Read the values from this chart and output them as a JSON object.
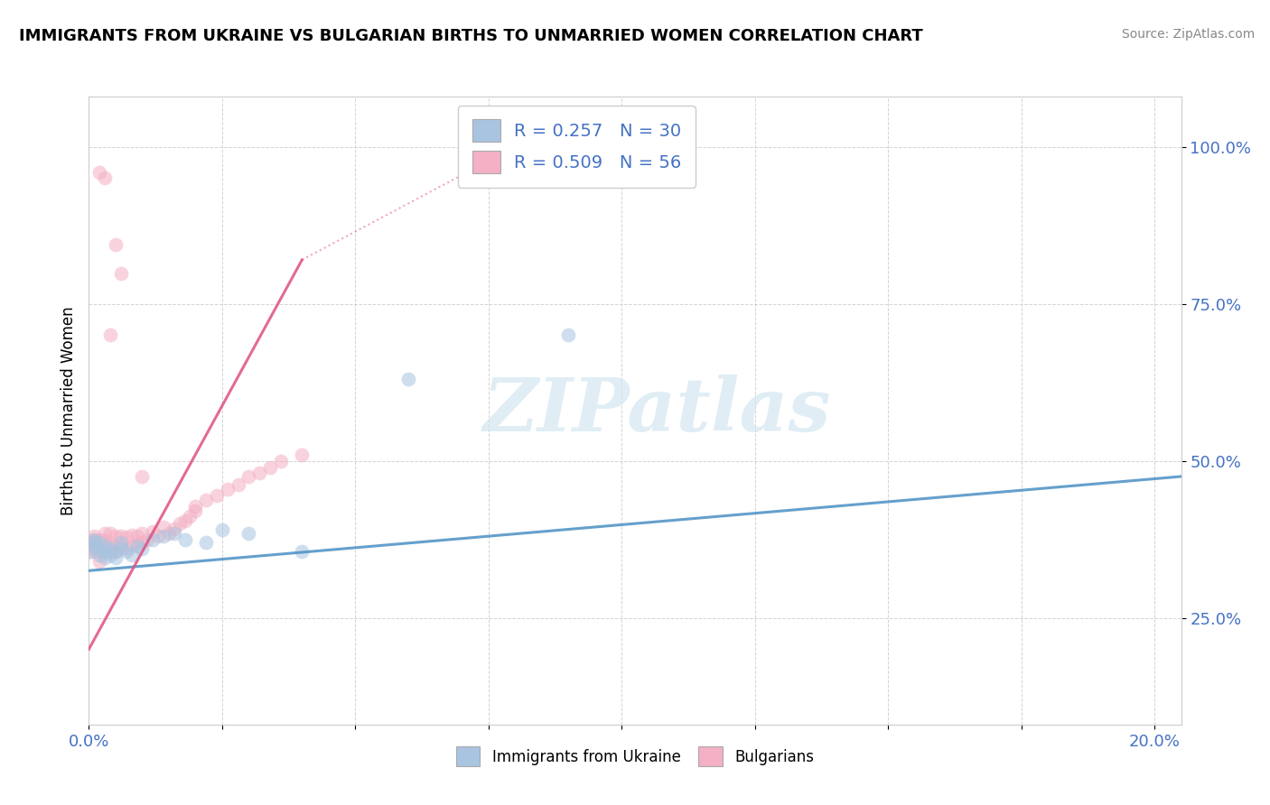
{
  "title": "IMMIGRANTS FROM UKRAINE VS BULGARIAN BIRTHS TO UNMARRIED WOMEN CORRELATION CHART",
  "source": "Source: ZipAtlas.com",
  "ylabel": "Births to Unmarried Women",
  "legend_r1": "R = 0.257",
  "legend_n1": "N = 30",
  "legend_r2": "R = 0.509",
  "legend_n2": "N = 56",
  "ukraine_fill": "#a8c4e0",
  "bulgarian_fill": "#f4b0c4",
  "ukraine_line": "#4a90c4",
  "bulgarian_line": "#e05080",
  "watermark_color": "#d0e4f0",
  "background_color": "#ffffff",
  "ukraine_x": [
    0.0005,
    0.001,
    0.001,
    0.001,
    0.002,
    0.002,
    0.002,
    0.003,
    0.003,
    0.003,
    0.004,
    0.004,
    0.005,
    0.005,
    0.006,
    0.006,
    0.007,
    0.008,
    0.009,
    0.01,
    0.012,
    0.014,
    0.016,
    0.018,
    0.022,
    0.025,
    0.03,
    0.04,
    0.06,
    0.09
  ],
  "ukraine_y": [
    0.355,
    0.365,
    0.37,
    0.375,
    0.35,
    0.36,
    0.37,
    0.345,
    0.355,
    0.365,
    0.35,
    0.36,
    0.345,
    0.355,
    0.36,
    0.37,
    0.355,
    0.35,
    0.365,
    0.36,
    0.375,
    0.38,
    0.385,
    0.375,
    0.37,
    0.39,
    0.385,
    0.355,
    0.63,
    0.7
  ],
  "bulgarian_x": [
    0.0003,
    0.0005,
    0.001,
    0.001,
    0.001,
    0.001,
    0.002,
    0.002,
    0.002,
    0.002,
    0.003,
    0.003,
    0.003,
    0.003,
    0.004,
    0.004,
    0.004,
    0.005,
    0.005,
    0.005,
    0.006,
    0.006,
    0.007,
    0.007,
    0.008,
    0.008,
    0.009,
    0.009,
    0.01,
    0.01,
    0.011,
    0.012,
    0.013,
    0.014,
    0.015,
    0.016,
    0.017,
    0.018,
    0.019,
    0.02,
    0.02,
    0.022,
    0.024,
    0.026,
    0.028,
    0.03,
    0.032,
    0.034,
    0.036,
    0.04,
    0.002,
    0.003,
    0.004,
    0.005,
    0.006,
    0.01
  ],
  "bulgarian_y": [
    0.355,
    0.36,
    0.365,
    0.37,
    0.375,
    0.38,
    0.34,
    0.355,
    0.365,
    0.375,
    0.355,
    0.365,
    0.375,
    0.385,
    0.355,
    0.37,
    0.385,
    0.355,
    0.365,
    0.38,
    0.365,
    0.38,
    0.36,
    0.378,
    0.365,
    0.382,
    0.368,
    0.38,
    0.37,
    0.385,
    0.375,
    0.388,
    0.38,
    0.395,
    0.385,
    0.392,
    0.4,
    0.405,
    0.412,
    0.42,
    0.428,
    0.438,
    0.445,
    0.455,
    0.462,
    0.475,
    0.48,
    0.49,
    0.5,
    0.51,
    0.96,
    0.95,
    0.7,
    0.845,
    0.798,
    0.475
  ],
  "xlim": [
    0.0,
    0.205
  ],
  "ylim": [
    0.08,
    1.08
  ],
  "yticks": [
    0.25,
    0.5,
    0.75,
    1.0
  ],
  "ytick_labels": [
    "25.0%",
    "50.0%",
    "75.0%",
    "100.0%"
  ],
  "xtick_labels": [
    "0.0%",
    "20.0%"
  ],
  "marker_size": 130,
  "marker_alpha": 0.55,
  "trend_ukraine": [
    0.0,
    0.205,
    0.325,
    0.475
  ],
  "trend_bulgarian_solid": [
    0.0,
    0.04,
    0.2,
    0.82
  ],
  "trend_bulgarian_dotted": [
    0.04,
    0.08,
    0.82,
    1.0
  ]
}
